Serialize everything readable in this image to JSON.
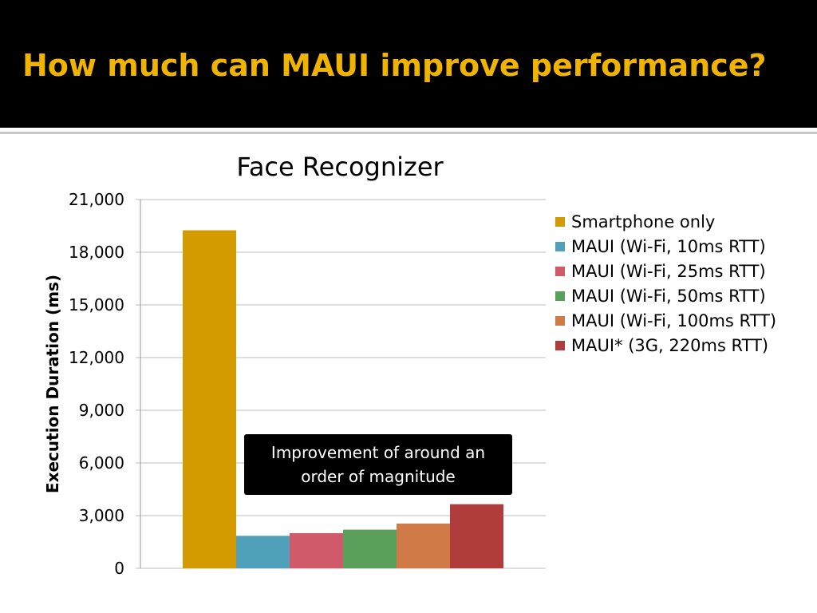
{
  "slide": {
    "title": "How much can MAUI improve performance?"
  },
  "annotation": {
    "text": "Improvement of around an order of magnitude"
  },
  "chart_data": {
    "type": "bar",
    "title": "Face Recognizer",
    "xlabel": "",
    "ylabel": "Execution Duration (ms)",
    "ylim": [
      0,
      21000
    ],
    "y_ticks": [
      "0",
      "3,000",
      "6,000",
      "9,000",
      "12,000",
      "15,000",
      "18,000",
      "21,000"
    ],
    "grid": true,
    "legend_position": "right",
    "series": [
      {
        "name": "Smartphone only",
        "value": 19250,
        "color": "#d39b00"
      },
      {
        "name": "MAUI (Wi-Fi, 10ms RTT)",
        "value": 1850,
        "color": "#4fa0b8"
      },
      {
        "name": "MAUI (Wi-Fi, 25ms RTT)",
        "value": 2000,
        "color": "#d05a6a"
      },
      {
        "name": "MAUI (Wi-Fi, 50ms RTT)",
        "value": 2200,
        "color": "#5aa05a"
      },
      {
        "name": "MAUI (Wi-Fi, 100ms RTT)",
        "value": 2550,
        "color": "#d07a48"
      },
      {
        "name": "MAUI* (3G, 220ms RTT)",
        "value": 3650,
        "color": "#b03c3c"
      }
    ]
  }
}
